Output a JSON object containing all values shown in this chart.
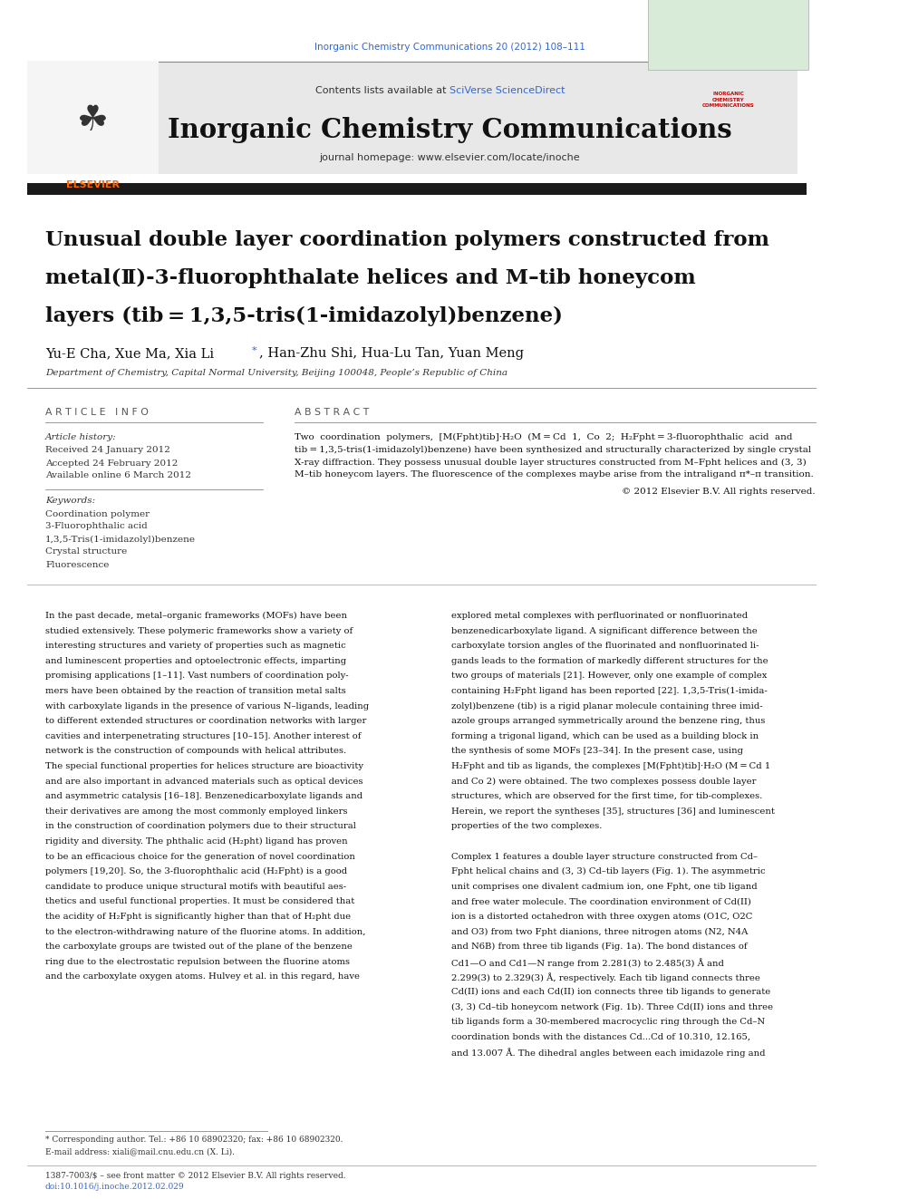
{
  "page_background": "#ffffff",
  "top_journal_ref": "Inorganic Chemistry Communications 20 (2012) 108–111",
  "top_journal_ref_color": "#3366cc",
  "header_bg": "#e8e8e8",
  "header_contents_text": "Contents lists available at ",
  "header_sciverse": "SciVerse ScienceDirect",
  "header_sciverse_color": "#3366cc",
  "header_journal_name": "Inorganic Chemistry Communications",
  "header_homepage": "journal homepage: www.elsevier.com/locate/inoche",
  "black_bar_color": "#1a1a1a",
  "article_title_line1": "Unusual double layer coordination polymers constructed from",
  "article_title_line2": "metal(Ⅱ)-3-fluorophthalate helices and M–tib honeycom",
  "article_title_line3": "layers (tib = 1,3,5-tris(1-imidazolyl)benzene)",
  "authors_pre": "Yu-E Cha, Xue Ma, Xia Li",
  "authors_post": ", Han-Zhu Shi, Hua-Lu Tan, Yuan Meng",
  "affiliation_text": "Department of Chemistry, Capital Normal University, Beijing 100048, People’s Republic of China",
  "section_divider_color": "#999999",
  "article_info_header": "A R T I C L E   I N F O",
  "abstract_header": "A B S T R A C T",
  "article_history_label": "Article history:",
  "received": "Received 24 January 2012",
  "accepted": "Accepted 24 February 2012",
  "available": "Available online 6 March 2012",
  "keywords_label": "Keywords:",
  "keywords": [
    "Coordination polymer",
    "3-Fluorophthalic acid",
    "1,3,5-Tris(1-imidazolyl)benzene",
    "Crystal structure",
    "Fluorescence"
  ],
  "copyright": "© 2012 Elsevier B.V. All rights reserved.",
  "footnote1": "* Corresponding author. Tel.: +86 10 68902320; fax: +86 10 68902320.",
  "footnote2": "E-mail address: xiali@mail.cnu.edu.cn (X. Li).",
  "footnote3": "1387-7003/$ – see front matter © 2012 Elsevier B.V. All rights reserved.",
  "footnote4": "doi:10.1016/j.inoche.2012.02.029",
  "body1_lines": [
    "In the past decade, metal–organic frameworks (MOFs) have been",
    "studied extensively. These polymeric frameworks show a variety of",
    "interesting structures and variety of properties such as magnetic",
    "and luminescent properties and optoelectronic effects, imparting",
    "promising applications [1–11]. Vast numbers of coordination poly-",
    "mers have been obtained by the reaction of transition metal salts",
    "with carboxylate ligands in the presence of various N–ligands, leading",
    "to different extended structures or coordination networks with larger",
    "cavities and interpenetrating structures [10–15]. Another interest of",
    "network is the construction of compounds with helical attributes.",
    "The special functional properties for helices structure are bioactivity",
    "and are also important in advanced materials such as optical devices",
    "and asymmetric catalysis [16–18]. Benzenedicarboxylate ligands and",
    "their derivatives are among the most commonly employed linkers",
    "in the construction of coordination polymers due to their structural",
    "rigidity and diversity. The phthalic acid (H₂pht) ligand has proven",
    "to be an efficacious choice for the generation of novel coordination",
    "polymers [19,20]. So, the 3-fluorophthalic acid (H₂Fpht) is a good",
    "candidate to produce unique structural motifs with beautiful aes-",
    "thetics and useful functional properties. It must be considered that",
    "the acidity of H₂Fpht is significantly higher than that of H₂pht due",
    "to the electron-withdrawing nature of the fluorine atoms. In addition,",
    "the carboxylate groups are twisted out of the plane of the benzene",
    "ring due to the electrostatic repulsion between the fluorine atoms",
    "and the carboxylate oxygen atoms. Hulvey et al. in this regard, have"
  ],
  "body2_lines": [
    "explored metal complexes with perfluorinated or nonfluorinated",
    "benzenedicarboxylate ligand. A significant difference between the",
    "carboxylate torsion angles of the fluorinated and nonfluorinated li-",
    "gands leads to the formation of markedly different structures for the",
    "two groups of materials [21]. However, only one example of complex",
    "containing H₂Fpht ligand has been reported [22]. 1,3,5-Tris(1-imida-",
    "zolyl)benzene (tib) is a rigid planar molecule containing three imid-",
    "azole groups arranged symmetrically around the benzene ring, thus",
    "forming a trigonal ligand, which can be used as a building block in",
    "the synthesis of some MOFs [23–34]. In the present case, using",
    "H₂Fpht and tib as ligands, the complexes [M(Fpht)tib]·H₂O (M = Cd 1",
    "and Co 2) were obtained. The two complexes possess double layer",
    "structures, which are observed for the first time, for tib-complexes.",
    "Herein, we report the syntheses [35], structures [36] and luminescent",
    "properties of the two complexes.",
    "",
    "Complex 1 features a double layer structure constructed from Cd–",
    "Fpht helical chains and (3, 3) Cd–tib layers (Fig. 1). The asymmetric",
    "unit comprises one divalent cadmium ion, one Fpht, one tib ligand",
    "and free water molecule. The coordination environment of Cd(II)",
    "ion is a distorted octahedron with three oxygen atoms (O1C, O2C",
    "and O3) from two Fpht dianions, three nitrogen atoms (N2, N4A",
    "and N6B) from three tib ligands (Fig. 1a). The bond distances of",
    "Cd1—O and Cd1—N range from 2.281(3) to 2.485(3) Å and",
    "2.299(3) to 2.329(3) Å, respectively. Each tib ligand connects three",
    "Cd(II) ions and each Cd(II) ion connects three tib ligands to generate",
    "(3, 3) Cd–tib honeycom network (Fig. 1b). Three Cd(II) ions and three",
    "tib ligands form a 30-membered macrocyclic ring through the Cd–N",
    "coordination bonds with the distances Cd...Cd of 10.310, 12.165,",
    "and 13.007 Å. The dihedral angles between each imidazole ring and"
  ],
  "abstract_lines": [
    "Two  coordination  polymers,  [M(Fpht)tib]·H₂O  (M = Cd  1,  Co  2;  H₂Fpht = 3-fluorophthalic  acid  and",
    "tib = 1,3,5-tris(1-imidazolyl)benzene) have been synthesized and structurally characterized by single crystal",
    "X-ray diffraction. They possess unusual double layer structures constructed from M–Fpht helices and (3, 3)",
    "M–tib honeycom layers. The fluorescence of the complexes maybe arise from the intraligand π*–π transition."
  ]
}
